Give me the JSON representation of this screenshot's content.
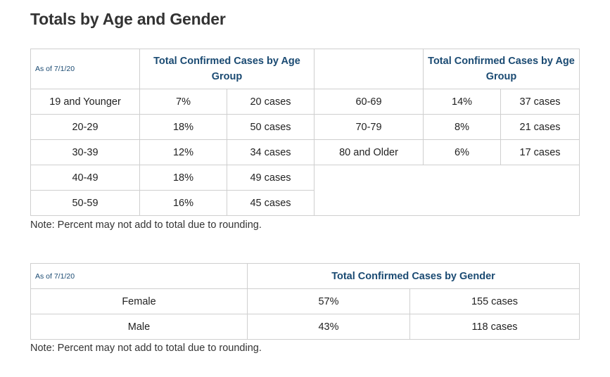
{
  "page_title": "Totals by Age and Gender",
  "age_table": {
    "as_of": "As of 7/1/20",
    "header_left": "Total Confirmed Cases by Age Group",
    "header_right": "Total Confirmed Cases by Age Group",
    "left_rows": [
      {
        "group": "19 and Younger",
        "percent": "7%",
        "cases": "20 cases"
      },
      {
        "group": "20-29",
        "percent": "18%",
        "cases": "50 cases"
      },
      {
        "group": "30-39",
        "percent": "12%",
        "cases": "34 cases"
      },
      {
        "group": "40-49",
        "percent": "18%",
        "cases": "49 cases"
      },
      {
        "group": "50-59",
        "percent": "16%",
        "cases": "45 cases"
      }
    ],
    "right_rows": [
      {
        "group": "60-69",
        "percent": "14%",
        "cases": "37 cases"
      },
      {
        "group": "70-79",
        "percent": "8%",
        "cases": "21 cases"
      },
      {
        "group": "80 and Older",
        "percent": "6%",
        "cases": "17 cases"
      }
    ],
    "note": "Note: Percent may not add to total due to rounding."
  },
  "gender_table": {
    "as_of": "As of 7/1/20",
    "header": "Total Confirmed Cases by Gender",
    "rows": [
      {
        "gender": "Female",
        "percent": "57%",
        "cases": "155 cases"
      },
      {
        "gender": "Male",
        "percent": "43%",
        "cases": "118 cases"
      }
    ],
    "note": "Note: Percent may not add to total due to rounding."
  }
}
